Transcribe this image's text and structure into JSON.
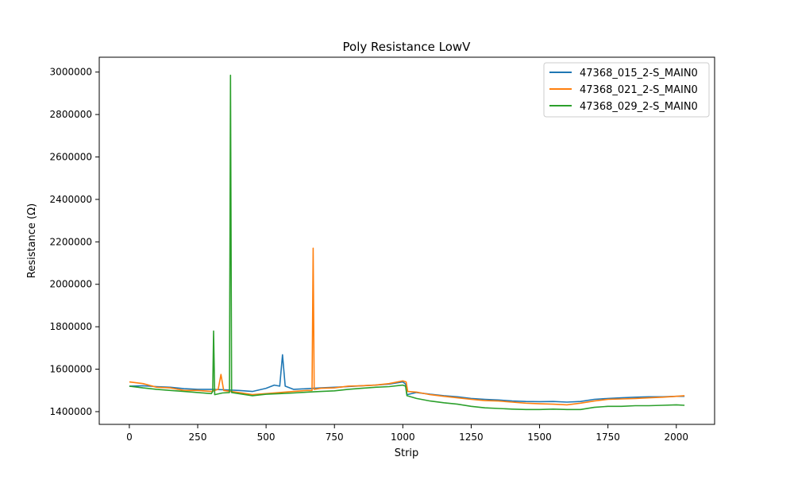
{
  "chart_data": {
    "type": "line",
    "title": "Poly Resistance LowV",
    "xlabel": "Strip",
    "ylabel": "Resistance (Ω)",
    "xlim": [
      -110,
      2140
    ],
    "ylim": [
      1340000,
      3070000
    ],
    "xticks": [
      0,
      250,
      500,
      750,
      1000,
      1250,
      1500,
      1750,
      2000
    ],
    "xtick_labels": [
      "0",
      "250",
      "500",
      "750",
      "1000",
      "1250",
      "1500",
      "1750",
      "2000"
    ],
    "yticks": [
      1400000,
      1600000,
      1800000,
      2000000,
      2200000,
      2400000,
      2600000,
      2800000,
      3000000
    ],
    "ytick_labels": [
      "1400000",
      "1600000",
      "1800000",
      "2000000",
      "2200000",
      "2400000",
      "2600000",
      "2800000",
      "3000000"
    ],
    "grid": false,
    "legend_position": "top-right",
    "series": [
      {
        "name": "47368_015_2-S_MAIN0",
        "color": "#1f77b4",
        "points": [
          [
            0,
            1520000
          ],
          [
            50,
            1522000
          ],
          [
            100,
            1518000
          ],
          [
            150,
            1515000
          ],
          [
            200,
            1508000
          ],
          [
            250,
            1505000
          ],
          [
            300,
            1505000
          ],
          [
            350,
            1503000
          ],
          [
            400,
            1500000
          ],
          [
            450,
            1495000
          ],
          [
            500,
            1510000
          ],
          [
            530,
            1525000
          ],
          [
            550,
            1520000
          ],
          [
            560,
            1668000
          ],
          [
            570,
            1520000
          ],
          [
            600,
            1505000
          ],
          [
            650,
            1508000
          ],
          [
            700,
            1512000
          ],
          [
            750,
            1515000
          ],
          [
            800,
            1518000
          ],
          [
            850,
            1522000
          ],
          [
            900,
            1525000
          ],
          [
            950,
            1530000
          ],
          [
            1000,
            1540000
          ],
          [
            1010,
            1530000
          ],
          [
            1015,
            1480000
          ],
          [
            1050,
            1490000
          ],
          [
            1100,
            1482000
          ],
          [
            1150,
            1475000
          ],
          [
            1200,
            1470000
          ],
          [
            1250,
            1462000
          ],
          [
            1300,
            1458000
          ],
          [
            1350,
            1455000
          ],
          [
            1400,
            1450000
          ],
          [
            1450,
            1448000
          ],
          [
            1500,
            1447000
          ],
          [
            1550,
            1448000
          ],
          [
            1600,
            1445000
          ],
          [
            1650,
            1448000
          ],
          [
            1700,
            1458000
          ],
          [
            1750,
            1462000
          ],
          [
            1800,
            1465000
          ],
          [
            1850,
            1468000
          ],
          [
            1900,
            1470000
          ],
          [
            1950,
            1470000
          ],
          [
            2000,
            1472000
          ],
          [
            2030,
            1472000
          ]
        ]
      },
      {
        "name": "47368_021_2-S_MAIN0",
        "color": "#ff7f0e",
        "points": [
          [
            0,
            1540000
          ],
          [
            50,
            1532000
          ],
          [
            100,
            1515000
          ],
          [
            150,
            1512000
          ],
          [
            200,
            1500000
          ],
          [
            250,
            1500000
          ],
          [
            300,
            1495000
          ],
          [
            325,
            1505000
          ],
          [
            335,
            1575000
          ],
          [
            345,
            1500000
          ],
          [
            400,
            1490000
          ],
          [
            450,
            1480000
          ],
          [
            500,
            1485000
          ],
          [
            550,
            1490000
          ],
          [
            600,
            1495000
          ],
          [
            650,
            1500000
          ],
          [
            668,
            1500000
          ],
          [
            672,
            2170000
          ],
          [
            676,
            1505000
          ],
          [
            700,
            1510000
          ],
          [
            750,
            1512000
          ],
          [
            800,
            1520000
          ],
          [
            850,
            1522000
          ],
          [
            900,
            1525000
          ],
          [
            950,
            1532000
          ],
          [
            1000,
            1545000
          ],
          [
            1012,
            1540000
          ],
          [
            1018,
            1495000
          ],
          [
            1050,
            1492000
          ],
          [
            1100,
            1480000
          ],
          [
            1150,
            1472000
          ],
          [
            1200,
            1465000
          ],
          [
            1250,
            1458000
          ],
          [
            1300,
            1452000
          ],
          [
            1350,
            1450000
          ],
          [
            1400,
            1445000
          ],
          [
            1450,
            1440000
          ],
          [
            1500,
            1437000
          ],
          [
            1550,
            1435000
          ],
          [
            1600,
            1432000
          ],
          [
            1650,
            1440000
          ],
          [
            1700,
            1450000
          ],
          [
            1750,
            1458000
          ],
          [
            1800,
            1460000
          ],
          [
            1850,
            1462000
          ],
          [
            1900,
            1465000
          ],
          [
            1950,
            1468000
          ],
          [
            2000,
            1472000
          ],
          [
            2030,
            1475000
          ]
        ]
      },
      {
        "name": "47368_029_2-S_MAIN0",
        "color": "#2ca02c",
        "points": [
          [
            0,
            1520000
          ],
          [
            50,
            1512000
          ],
          [
            100,
            1505000
          ],
          [
            150,
            1500000
          ],
          [
            200,
            1495000
          ],
          [
            250,
            1490000
          ],
          [
            300,
            1485000
          ],
          [
            305,
            1495000
          ],
          [
            308,
            1780000
          ],
          [
            312,
            1480000
          ],
          [
            340,
            1488000
          ],
          [
            366,
            1490000
          ],
          [
            370,
            2985000
          ],
          [
            374,
            1490000
          ],
          [
            400,
            1485000
          ],
          [
            450,
            1475000
          ],
          [
            500,
            1482000
          ],
          [
            550,
            1485000
          ],
          [
            600,
            1488000
          ],
          [
            650,
            1492000
          ],
          [
            700,
            1495000
          ],
          [
            750,
            1498000
          ],
          [
            800,
            1505000
          ],
          [
            850,
            1510000
          ],
          [
            900,
            1515000
          ],
          [
            950,
            1518000
          ],
          [
            1000,
            1525000
          ],
          [
            1010,
            1520000
          ],
          [
            1015,
            1475000
          ],
          [
            1050,
            1462000
          ],
          [
            1100,
            1450000
          ],
          [
            1150,
            1442000
          ],
          [
            1200,
            1435000
          ],
          [
            1250,
            1425000
          ],
          [
            1300,
            1418000
          ],
          [
            1350,
            1415000
          ],
          [
            1400,
            1412000
          ],
          [
            1450,
            1410000
          ],
          [
            1500,
            1410000
          ],
          [
            1550,
            1412000
          ],
          [
            1600,
            1410000
          ],
          [
            1650,
            1410000
          ],
          [
            1700,
            1420000
          ],
          [
            1750,
            1425000
          ],
          [
            1800,
            1425000
          ],
          [
            1850,
            1428000
          ],
          [
            1900,
            1428000
          ],
          [
            1950,
            1430000
          ],
          [
            2000,
            1432000
          ],
          [
            2030,
            1430000
          ]
        ]
      }
    ]
  }
}
